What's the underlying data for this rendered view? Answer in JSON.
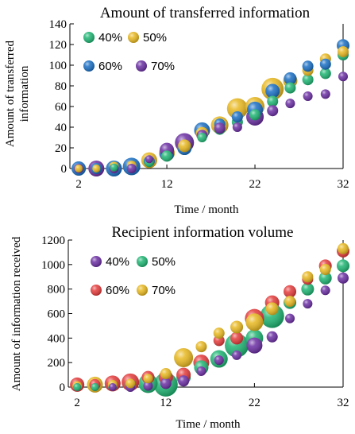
{
  "chart_data": [
    {
      "type": "bubble",
      "title": "Amount of transferred information",
      "xlabel": "Time / month",
      "ylabel": "Amount of transferred information",
      "xlim": [
        1,
        32
      ],
      "ylim": [
        0,
        140
      ],
      "xticks": [
        2,
        12,
        22,
        32
      ],
      "yticks": [
        0,
        20,
        40,
        60,
        80,
        100,
        120,
        140
      ],
      "legend_position": "top-left",
      "series": [
        {
          "name": "40%",
          "color": "#1fb573",
          "points": [
            {
              "x": 2,
              "y": 0,
              "r": 5
            },
            {
              "x": 4,
              "y": 0,
              "r": 5
            },
            {
              "x": 6,
              "y": 1,
              "r": 5
            },
            {
              "x": 8,
              "y": 2,
              "r": 6
            },
            {
              "x": 10,
              "y": 6,
              "r": 6
            },
            {
              "x": 12,
              "y": 12,
              "r": 7
            },
            {
              "x": 14,
              "y": 20,
              "r": 9
            },
            {
              "x": 16,
              "y": 30,
              "r": 6
            },
            {
              "x": 18,
              "y": 38,
              "r": 7
            },
            {
              "x": 20,
              "y": 45,
              "r": 7
            },
            {
              "x": 22,
              "y": 52,
              "r": 7
            },
            {
              "x": 24,
              "y": 65,
              "r": 7
            },
            {
              "x": 26,
              "y": 78,
              "r": 7
            },
            {
              "x": 28,
              "y": 86,
              "r": 7
            },
            {
              "x": 30,
              "y": 92,
              "r": 7
            },
            {
              "x": 32,
              "y": 110,
              "r": 7
            }
          ]
        },
        {
          "name": "50%",
          "color": "#e8b820",
          "points": [
            {
              "x": 2,
              "y": 0,
              "r": 5
            },
            {
              "x": 4,
              "y": 0,
              "r": 5
            },
            {
              "x": 6,
              "y": 2,
              "r": 6
            },
            {
              "x": 8,
              "y": 3,
              "r": 6
            },
            {
              "x": 10,
              "y": 8,
              "r": 10
            },
            {
              "x": 12,
              "y": 15,
              "r": 10
            },
            {
              "x": 14,
              "y": 22,
              "r": 8
            },
            {
              "x": 16,
              "y": 34,
              "r": 8
            },
            {
              "x": 18,
              "y": 42,
              "r": 11
            },
            {
              "x": 20,
              "y": 58,
              "r": 13
            },
            {
              "x": 22,
              "y": 60,
              "r": 12
            },
            {
              "x": 24,
              "y": 77,
              "r": 14
            },
            {
              "x": 26,
              "y": 85,
              "r": 9
            },
            {
              "x": 28,
              "y": 95,
              "r": 7
            },
            {
              "x": 30,
              "y": 106,
              "r": 7
            },
            {
              "x": 32,
              "y": 113,
              "r": 7
            }
          ]
        },
        {
          "name": "60%",
          "color": "#1a6fc4",
          "points": [
            {
              "x": 2,
              "y": 0,
              "r": 9
            },
            {
              "x": 4,
              "y": 0,
              "r": 7
            },
            {
              "x": 6,
              "y": 0,
              "r": 10
            },
            {
              "x": 8,
              "y": 2,
              "r": 11
            },
            {
              "x": 10,
              "y": 7,
              "r": 7
            },
            {
              "x": 12,
              "y": 14,
              "r": 9
            },
            {
              "x": 14,
              "y": 20,
              "r": 9
            },
            {
              "x": 16,
              "y": 37,
              "r": 10
            },
            {
              "x": 18,
              "y": 43,
              "r": 7
            },
            {
              "x": 20,
              "y": 50,
              "r": 7
            },
            {
              "x": 22,
              "y": 57,
              "r": 10
            },
            {
              "x": 24,
              "y": 75,
              "r": 9
            },
            {
              "x": 26,
              "y": 87,
              "r": 8
            },
            {
              "x": 28,
              "y": 99,
              "r": 7
            },
            {
              "x": 30,
              "y": 101,
              "r": 7
            },
            {
              "x": 32,
              "y": 119,
              "r": 8
            }
          ]
        },
        {
          "name": "70%",
          "color": "#6b2fa3",
          "points": [
            {
              "x": 2,
              "y": 0,
              "r": 6
            },
            {
              "x": 4,
              "y": 0,
              "r": 10
            },
            {
              "x": 6,
              "y": 0,
              "r": 6
            },
            {
              "x": 8,
              "y": 0,
              "r": 6
            },
            {
              "x": 10,
              "y": 9,
              "r": 5
            },
            {
              "x": 12,
              "y": 18,
              "r": 9
            },
            {
              "x": 14,
              "y": 25,
              "r": 12
            },
            {
              "x": 16,
              "y": 32,
              "r": 7
            },
            {
              "x": 18,
              "y": 39,
              "r": 7
            },
            {
              "x": 20,
              "y": 40,
              "r": 6
            },
            {
              "x": 22,
              "y": 50,
              "r": 11
            },
            {
              "x": 24,
              "y": 56,
              "r": 7
            },
            {
              "x": 26,
              "y": 63,
              "r": 6
            },
            {
              "x": 28,
              "y": 70,
              "r": 6
            },
            {
              "x": 30,
              "y": 72,
              "r": 6
            },
            {
              "x": 32,
              "y": 89,
              "r": 6
            }
          ]
        }
      ]
    },
    {
      "type": "bubble",
      "title": "Recipient information volume",
      "xlabel": "Time / month",
      "ylabel": "Amount of information received",
      "xlim": [
        1,
        32
      ],
      "ylim": [
        0,
        1200
      ],
      "xticks": [
        2,
        12,
        22,
        32
      ],
      "yticks": [
        0,
        200,
        400,
        600,
        800,
        1000,
        1200
      ],
      "legend_position": "top-left",
      "series": [
        {
          "name": "40%",
          "color": "#6b2fa3",
          "points": [
            {
              "x": 2,
              "y": 0,
              "r": 5
            },
            {
              "x": 4,
              "y": 0,
              "r": 5
            },
            {
              "x": 6,
              "y": 0,
              "r": 5
            },
            {
              "x": 8,
              "y": 0,
              "r": 6
            },
            {
              "x": 10,
              "y": 10,
              "r": 6
            },
            {
              "x": 12,
              "y": 30,
              "r": 7
            },
            {
              "x": 14,
              "y": 50,
              "r": 7
            },
            {
              "x": 16,
              "y": 130,
              "r": 6
            },
            {
              "x": 18,
              "y": 220,
              "r": 6
            },
            {
              "x": 20,
              "y": 260,
              "r": 6
            },
            {
              "x": 22,
              "y": 340,
              "r": 10
            },
            {
              "x": 24,
              "y": 410,
              "r": 7
            },
            {
              "x": 26,
              "y": 560,
              "r": 6
            },
            {
              "x": 28,
              "y": 680,
              "r": 6
            },
            {
              "x": 30,
              "y": 790,
              "r": 6
            },
            {
              "x": 32,
              "y": 890,
              "r": 7
            }
          ]
        },
        {
          "name": "50%",
          "color": "#1fb573",
          "points": [
            {
              "x": 2,
              "y": 0,
              "r": 5
            },
            {
              "x": 4,
              "y": 0,
              "r": 5
            },
            {
              "x": 6,
              "y": 10,
              "r": 6
            },
            {
              "x": 8,
              "y": 20,
              "r": 7
            },
            {
              "x": 10,
              "y": 30,
              "r": 12
            },
            {
              "x": 12,
              "y": 20,
              "r": 15
            },
            {
              "x": 14,
              "y": 80,
              "r": 9
            },
            {
              "x": 16,
              "y": 160,
              "r": 9
            },
            {
              "x": 18,
              "y": 230,
              "r": 11
            },
            {
              "x": 20,
              "y": 340,
              "r": 15
            },
            {
              "x": 22,
              "y": 400,
              "r": 11
            },
            {
              "x": 24,
              "y": 580,
              "r": 15
            },
            {
              "x": 26,
              "y": 690,
              "r": 8
            },
            {
              "x": 28,
              "y": 800,
              "r": 8
            },
            {
              "x": 30,
              "y": 890,
              "r": 8
            },
            {
              "x": 32,
              "y": 990,
              "r": 8
            }
          ]
        },
        {
          "name": "60%",
          "color": "#e43b3b",
          "points": [
            {
              "x": 2,
              "y": 20,
              "r": 9
            },
            {
              "x": 4,
              "y": 20,
              "r": 7
            },
            {
              "x": 6,
              "y": 30,
              "r": 10
            },
            {
              "x": 8,
              "y": 40,
              "r": 11
            },
            {
              "x": 10,
              "y": 80,
              "r": 8
            },
            {
              "x": 12,
              "y": 80,
              "r": 9
            },
            {
              "x": 14,
              "y": 100,
              "r": 9
            },
            {
              "x": 16,
              "y": 200,
              "r": 10
            },
            {
              "x": 18,
              "y": 380,
              "r": 7
            },
            {
              "x": 20,
              "y": 400,
              "r": 8
            },
            {
              "x": 22,
              "y": 560,
              "r": 12
            },
            {
              "x": 24,
              "y": 690,
              "r": 9
            },
            {
              "x": 26,
              "y": 780,
              "r": 8
            },
            {
              "x": 28,
              "y": 880,
              "r": 7
            },
            {
              "x": 30,
              "y": 990,
              "r": 8
            },
            {
              "x": 32,
              "y": 1110,
              "r": 8
            }
          ]
        },
        {
          "name": "70%",
          "color": "#e8b820",
          "points": [
            {
              "x": 2,
              "y": 10,
              "r": 6
            },
            {
              "x": 4,
              "y": 20,
              "r": 10
            },
            {
              "x": 6,
              "y": 20,
              "r": 6
            },
            {
              "x": 8,
              "y": 30,
              "r": 6
            },
            {
              "x": 10,
              "y": 70,
              "r": 6
            },
            {
              "x": 12,
              "y": 110,
              "r": 7
            },
            {
              "x": 14,
              "y": 240,
              "r": 12
            },
            {
              "x": 16,
              "y": 330,
              "r": 7
            },
            {
              "x": 18,
              "y": 440,
              "r": 7
            },
            {
              "x": 20,
              "y": 490,
              "r": 8
            },
            {
              "x": 22,
              "y": 530,
              "r": 11
            },
            {
              "x": 24,
              "y": 640,
              "r": 8
            },
            {
              "x": 26,
              "y": 700,
              "r": 7
            },
            {
              "x": 28,
              "y": 900,
              "r": 7
            },
            {
              "x": 30,
              "y": 960,
              "r": 7
            },
            {
              "x": 32,
              "y": 1130,
              "r": 7
            }
          ]
        }
      ]
    }
  ]
}
